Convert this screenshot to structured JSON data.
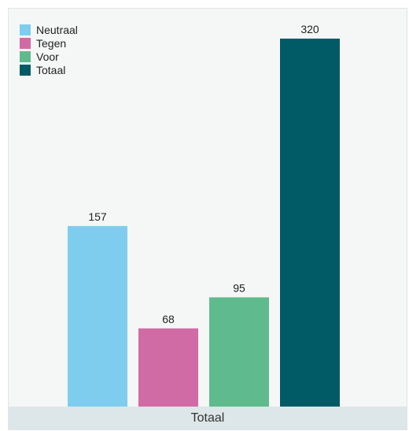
{
  "chart_data": {
    "type": "bar",
    "categories": [
      "Totaal"
    ],
    "xlabel": "",
    "ylabel": "",
    "ylim": [
      0,
      320
    ],
    "grid": false,
    "legend_position": "top-left",
    "series": [
      {
        "name": "Neutraal",
        "values": [
          157
        ],
        "color": "#7fcdee"
      },
      {
        "name": "Tegen",
        "values": [
          68
        ],
        "color": "#d16ba5"
      },
      {
        "name": "Voor",
        "values": [
          95
        ],
        "color": "#5fbb8d"
      },
      {
        "name": "Totaal",
        "values": [
          320
        ],
        "color": "#005b66"
      }
    ]
  }
}
